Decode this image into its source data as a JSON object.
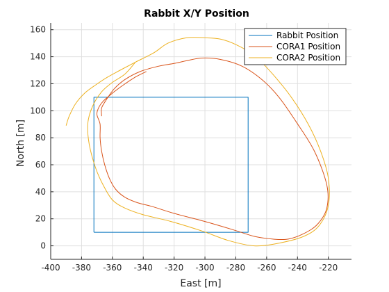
{
  "chart_data": {
    "type": "line",
    "title": "Rabbit X/Y Position",
    "xlabel": "East [m]",
    "ylabel": "North [m]",
    "xlim": [
      -400,
      -205
    ],
    "ylim": [
      -10,
      165
    ],
    "xticks": [
      -400,
      -380,
      -360,
      -340,
      -320,
      -300,
      -280,
      -260,
      -240,
      -220
    ],
    "yticks": [
      0,
      20,
      40,
      60,
      80,
      100,
      120,
      140,
      160
    ],
    "grid": true,
    "legend_position": "top-right",
    "series": [
      {
        "name": "Rabbit Position",
        "color": "#0072BD",
        "points": [
          [
            -372,
            10
          ],
          [
            -372,
            110
          ],
          [
            -272,
            110
          ],
          [
            -272,
            10
          ],
          [
            -372,
            10
          ]
        ]
      },
      {
        "name": "CORA1 Position",
        "color": "#D95319",
        "points": [
          [
            -338,
            129
          ],
          [
            -345,
            125
          ],
          [
            -353,
            119
          ],
          [
            -360,
            113
          ],
          [
            -366,
            107
          ],
          [
            -369,
            102
          ],
          [
            -370,
            97
          ],
          [
            -368,
            90
          ],
          [
            -368,
            80
          ],
          [
            -367,
            70
          ],
          [
            -365,
            60
          ],
          [
            -362,
            50
          ],
          [
            -358,
            42
          ],
          [
            -352,
            36
          ],
          [
            -344,
            32
          ],
          [
            -334,
            29
          ],
          [
            -320,
            24
          ],
          [
            -300,
            18
          ],
          [
            -282,
            12
          ],
          [
            -268,
            7
          ],
          [
            -256,
            5
          ],
          [
            -246,
            5
          ],
          [
            -236,
            9
          ],
          [
            -227,
            16
          ],
          [
            -221,
            28
          ],
          [
            -221,
            45
          ],
          [
            -229,
            70
          ],
          [
            -241,
            92
          ],
          [
            -252,
            110
          ],
          [
            -263,
            123
          ],
          [
            -276,
            133
          ],
          [
            -290,
            138
          ],
          [
            -302,
            139
          ],
          [
            -312,
            137
          ],
          [
            -320,
            135
          ],
          [
            -330,
            133
          ],
          [
            -342,
            129
          ],
          [
            -352,
            123
          ],
          [
            -359,
            116
          ],
          [
            -364,
            108
          ],
          [
            -367,
            102
          ],
          [
            -367,
            96
          ]
        ]
      },
      {
        "name": "CORA2 Position",
        "color": "#EDB120",
        "points": [
          [
            -390,
            89
          ],
          [
            -388,
            96
          ],
          [
            -384,
            105
          ],
          [
            -378,
            113
          ],
          [
            -371,
            119
          ],
          [
            -363,
            125
          ],
          [
            -355,
            130
          ],
          [
            -345,
            136
          ],
          [
            -333,
            143
          ],
          [
            -324,
            150
          ],
          [
            -312,
            154
          ],
          [
            -300,
            154
          ],
          [
            -290,
            153
          ],
          [
            -280,
            149
          ],
          [
            -268,
            141
          ],
          [
            -256,
            127
          ],
          [
            -244,
            110
          ],
          [
            -233,
            90
          ],
          [
            -225,
            70
          ],
          [
            -220,
            50
          ],
          [
            -220,
            30
          ],
          [
            -226,
            15
          ],
          [
            -236,
            7
          ],
          [
            -252,
            2
          ],
          [
            -268,
            0
          ],
          [
            -285,
            4
          ],
          [
            -302,
            11
          ],
          [
            -322,
            18
          ],
          [
            -340,
            23
          ],
          [
            -352,
            28
          ],
          [
            -360,
            34
          ],
          [
            -366,
            45
          ],
          [
            -371,
            58
          ],
          [
            -375,
            75
          ],
          [
            -376,
            90
          ],
          [
            -373,
            103
          ],
          [
            -367,
            114
          ],
          [
            -360,
            121
          ],
          [
            -352,
            127
          ],
          [
            -345,
            136
          ]
        ]
      }
    ]
  }
}
